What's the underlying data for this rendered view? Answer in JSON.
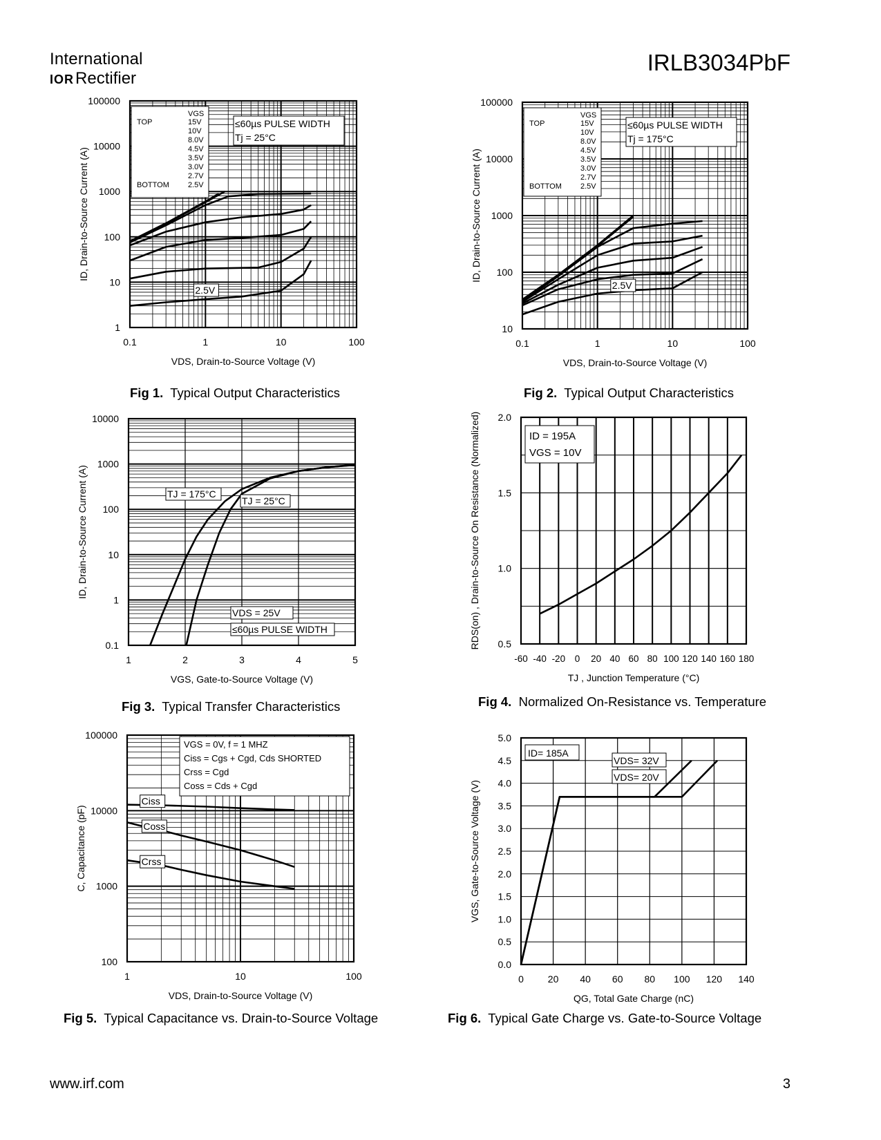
{
  "header": {
    "company_line1": "International",
    "logo_mark": "IOR",
    "company_line2": "Rectifier",
    "part_number": "IRLB3034PbF"
  },
  "footer": {
    "url": "www.irf.com",
    "page_number": "3"
  },
  "figures": {
    "fig1": {
      "label": "Fig 1.",
      "title": "Typical Output Characteristics"
    },
    "fig2": {
      "label": "Fig 2.",
      "title": "Typical Output Characteristics"
    },
    "fig3": {
      "label": "Fig 3.",
      "title": "Typical Transfer Characteristics"
    },
    "fig4": {
      "label": "Fig 4.",
      "title": "Normalized On-Resistance vs. Temperature"
    },
    "fig5": {
      "label": "Fig 5.",
      "title": "Typical Capacitance vs. Drain-to-Source Voltage"
    },
    "fig6": {
      "label": "Fig 6.",
      "title": "Typical Gate Charge vs. Gate-to-Source Voltage"
    }
  },
  "chart_data": [
    {
      "id": "fig1",
      "type": "line",
      "xscale": "log",
      "yscale": "log",
      "xlim": [
        0.1,
        100
      ],
      "ylim": [
        1,
        100000
      ],
      "xticks": [
        "0.1",
        "1",
        "10",
        "100"
      ],
      "yticks": [
        "1",
        "10",
        "100",
        "1000",
        "10000",
        "100000"
      ],
      "xlabel": "VDS, Drain-to-Source Voltage (V)",
      "ylabel": "ID, Drain-to-Source Current (A)",
      "legend": {
        "header": "VGS",
        "top_label": "TOP",
        "bottom_label": "BOTTOM",
        "values": [
          "15V",
          "10V",
          "8.0V",
          "4.5V",
          "3.5V",
          "3.0V",
          "2.7V",
          "2.5V"
        ]
      },
      "annotations": [
        "≤60µs PULSE WIDTH",
        "Tj = 25°C",
        "2.5V"
      ],
      "series": [
        {
          "name": "15V",
          "x": [
            0.1,
            0.3,
            1,
            1.5
          ],
          "y": [
            80,
            200,
            600,
            900
          ]
        },
        {
          "name": "10V",
          "x": [
            0.1,
            0.3,
            1,
            1.8
          ],
          "y": [
            78,
            195,
            580,
            1000
          ]
        },
        {
          "name": "8.0V",
          "x": [
            0.1,
            0.3,
            1,
            2,
            5,
            25
          ],
          "y": [
            75,
            180,
            500,
            780,
            880,
            900
          ]
        },
        {
          "name": "4.5V",
          "x": [
            0.1,
            0.3,
            1,
            3,
            10,
            20,
            25
          ],
          "y": [
            65,
            130,
            210,
            270,
            320,
            400,
            500
          ]
        },
        {
          "name": "3.5V",
          "x": [
            0.1,
            0.3,
            1,
            3,
            10,
            20,
            25
          ],
          "y": [
            30,
            60,
            85,
            95,
            110,
            150,
            220
          ]
        },
        {
          "name": "3.0V",
          "x": [
            0.1,
            0.3,
            1,
            5,
            10,
            20,
            25
          ],
          "y": [
            12,
            17,
            20,
            21,
            28,
            55,
            100
          ]
        },
        {
          "name": "2.5V",
          "x": [
            0.1,
            0.3,
            1,
            3,
            10,
            20,
            25
          ],
          "y": [
            3,
            3.6,
            4.2,
            4.8,
            6.5,
            15,
            30
          ]
        }
      ]
    },
    {
      "id": "fig2",
      "type": "line",
      "xscale": "log",
      "yscale": "log",
      "xlim": [
        0.1,
        100
      ],
      "ylim": [
        10,
        100000
      ],
      "xticks": [
        "0.1",
        "1",
        "10",
        "100"
      ],
      "yticks": [
        "10",
        "100",
        "1000",
        "10000",
        "100000"
      ],
      "xlabel": "VDS, Drain-to-Source Voltage (V)",
      "ylabel": "ID, Drain-to-Source Current (A)",
      "legend": {
        "header": "VGS",
        "top_label": "TOP",
        "bottom_label": "BOTTOM",
        "values": [
          "15V",
          "10V",
          "8.0V",
          "4.5V",
          "3.5V",
          "3.0V",
          "2.7V",
          "2.5V"
        ]
      },
      "annotations": [
        "≤60µs PULSE WIDTH",
        "Tj = 175°C",
        "2.5V"
      ],
      "series": [
        {
          "name": "15V",
          "x": [
            0.1,
            0.3,
            1,
            3
          ],
          "y": [
            33,
            90,
            300,
            1000
          ]
        },
        {
          "name": "10V",
          "x": [
            0.1,
            0.3,
            1,
            3
          ],
          "y": [
            32,
            88,
            290,
            950
          ]
        },
        {
          "name": "8.0V",
          "x": [
            0.1,
            0.3,
            1,
            3,
            10,
            25
          ],
          "y": [
            31,
            85,
            280,
            600,
            720,
            800
          ]
        },
        {
          "name": "4.5V",
          "x": [
            0.1,
            0.3,
            1,
            3,
            10,
            25
          ],
          "y": [
            30,
            75,
            200,
            320,
            350,
            440
          ]
        },
        {
          "name": "3.5V",
          "x": [
            0.1,
            0.3,
            1,
            3,
            10,
            25
          ],
          "y": [
            28,
            60,
            120,
            160,
            180,
            280
          ]
        },
        {
          "name": "3.0V",
          "x": [
            0.1,
            0.3,
            1,
            3,
            10,
            25
          ],
          "y": [
            26,
            50,
            75,
            90,
            95,
            170
          ]
        },
        {
          "name": "2.5V",
          "x": [
            0.1,
            0.3,
            1,
            3,
            10,
            25
          ],
          "y": [
            18,
            30,
            42,
            48,
            52,
            100
          ]
        }
      ]
    },
    {
      "id": "fig3",
      "type": "line",
      "xscale": "linear",
      "yscale": "log",
      "xlim": [
        1,
        5
      ],
      "ylim": [
        0.1,
        10000
      ],
      "xticks": [
        "1",
        "2",
        "3",
        "4",
        "5"
      ],
      "yticks": [
        "0.1",
        "1",
        "10",
        "100",
        "1000",
        "10000"
      ],
      "xlabel": "VGS, Gate-to-Source Voltage (V)",
      "ylabel": "ID, Drain-to-Source Current (A)",
      "annotations": [
        "TJ = 175°C",
        "TJ = 25°C",
        "VDS = 25V",
        "≤60µs PULSE WIDTH"
      ],
      "series": [
        {
          "name": "TJ = 175°C",
          "x": [
            1.38,
            1.6,
            1.8,
            2.0,
            2.2,
            2.4,
            2.7,
            3.0,
            3.5,
            4.0,
            4.5,
            5.0
          ],
          "y": [
            0.1,
            0.5,
            2,
            8,
            25,
            60,
            150,
            280,
            500,
            700,
            850,
            950
          ]
        },
        {
          "name": "TJ = 25°C",
          "x": [
            2.02,
            2.2,
            2.4,
            2.6,
            2.8,
            3.0,
            3.5,
            4.0,
            4.5,
            5.0
          ],
          "y": [
            0.1,
            1,
            6,
            30,
            100,
            220,
            480,
            700,
            850,
            960
          ]
        }
      ]
    },
    {
      "id": "fig4",
      "type": "line",
      "xscale": "linear",
      "yscale": "linear",
      "xlim": [
        -60,
        180
      ],
      "ylim": [
        0.5,
        2.0
      ],
      "xticks": [
        "-60",
        "-40",
        "-20",
        "0",
        "20",
        "40",
        "60",
        "80",
        "100",
        "120",
        "140",
        "160",
        "180"
      ],
      "yticks": [
        "0.5",
        "1.0",
        "1.5",
        "2.0"
      ],
      "xlabel": "TJ , Junction Temperature (°C)",
      "ylabel": "RDS(on) , Drain-to-Source On Resistance (Normalized)",
      "annotations": [
        "ID = 195A",
        "VGS = 10V"
      ],
      "series": [
        {
          "name": "RDS(on)",
          "x": [
            -40,
            -20,
            0,
            20,
            40,
            60,
            80,
            100,
            120,
            140,
            160,
            175
          ],
          "y": [
            0.7,
            0.76,
            0.83,
            0.9,
            0.98,
            1.06,
            1.15,
            1.25,
            1.37,
            1.5,
            1.63,
            1.75
          ]
        }
      ]
    },
    {
      "id": "fig5",
      "type": "line",
      "xscale": "log",
      "yscale": "log",
      "xlim": [
        1,
        100
      ],
      "ylim": [
        100,
        100000
      ],
      "xticks": [
        "1",
        "10",
        "100"
      ],
      "yticks": [
        "100",
        "1000",
        "10000",
        "100000"
      ],
      "xlabel": "VDS, Drain-to-Source Voltage (V)",
      "ylabel": "C, Capacitance (pF)",
      "legend_lines": [
        "VGS = 0V,  f = 1 MHZ",
        "Ciss = Cgs + Cgd, Cds SHORTED",
        "Crss = Cgd",
        "Coss = Cds + Cgd"
      ],
      "series": [
        {
          "name": "Ciss",
          "x": [
            1,
            2,
            5,
            10,
            20,
            30
          ],
          "y": [
            12000,
            11800,
            11300,
            10800,
            10400,
            10200
          ]
        },
        {
          "name": "Coss",
          "x": [
            1,
            1.5,
            2,
            3,
            5,
            10,
            20,
            30
          ],
          "y": [
            7000,
            6000,
            5500,
            4700,
            3900,
            3000,
            2200,
            1800
          ]
        },
        {
          "name": "Crss",
          "x": [
            1,
            2,
            3,
            5,
            10,
            20,
            30
          ],
          "y": [
            2200,
            1900,
            1650,
            1400,
            1150,
            1000,
            920
          ]
        }
      ]
    },
    {
      "id": "fig6",
      "type": "line",
      "xscale": "linear",
      "yscale": "linear",
      "xlim": [
        0,
        140
      ],
      "ylim": [
        0,
        5.0
      ],
      "xticks": [
        "0",
        "20",
        "40",
        "60",
        "80",
        "100",
        "120",
        "140"
      ],
      "yticks": [
        "0.0",
        "0.5",
        "1.0",
        "1.5",
        "2.0",
        "2.5",
        "3.0",
        "3.5",
        "4.0",
        "4.5",
        "5.0"
      ],
      "xlabel": "QG, Total Gate Charge (nC)",
      "ylabel": "VGS, Gate-to-Source Voltage (V)",
      "annotations": [
        "ID= 185A",
        "VDS= 32V",
        "VDS= 20V"
      ],
      "series": [
        {
          "name": "VDS= 32V",
          "x": [
            0,
            24,
            100,
            122
          ],
          "y": [
            0,
            3.7,
            3.7,
            4.5
          ]
        },
        {
          "name": "VDS= 20V",
          "x": [
            0,
            24,
            83,
            106
          ],
          "y": [
            0,
            3.7,
            3.7,
            4.5
          ]
        }
      ]
    }
  ]
}
